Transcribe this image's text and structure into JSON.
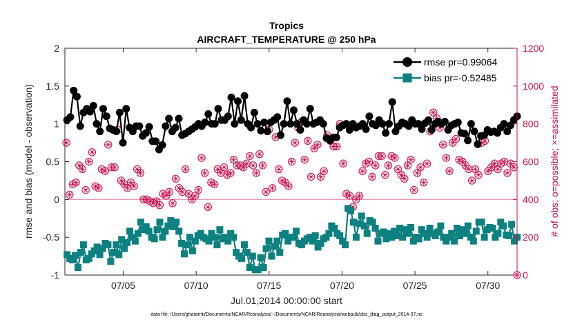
{
  "chart_data": {
    "type": "line",
    "title": "Tropics",
    "subtitle": "AIRCRAFT_TEMPERATURE @ 250 hPa",
    "xlabel": "Jul.01,2014 00:00:00 start",
    "ylabel": "rmse and bias (model - observation)",
    "y2label": "# of obs: o=possible; ×=assimilated",
    "footnote": "data file: /Users/gharamti/Documents/NCAR/Reanalysis/~/Documents/NCAR/Reanalysis/webpub/obs_diag_output_2014-07.nc",
    "xlim": [
      1,
      32
    ],
    "ylim": [
      -1,
      2
    ],
    "y2lim": [
      0,
      1200
    ],
    "xticks": [
      5,
      10,
      15,
      20,
      25,
      30
    ],
    "xtick_labels": [
      "07/05",
      "07/10",
      "07/15",
      "07/20",
      "07/25",
      "07/30"
    ],
    "yticks": [
      -1,
      -0.5,
      0,
      0.5,
      1,
      1.5,
      2
    ],
    "ytick_labels": [
      "-1",
      "-0.5",
      "0",
      "0.5",
      "1",
      "1.5",
      "2"
    ],
    "y2ticks": [
      0,
      200,
      400,
      600,
      800,
      1000,
      1200
    ],
    "y2tick_labels": [
      "0",
      "200",
      "400",
      "600",
      "800",
      "1000",
      "1200"
    ],
    "legend_position": "top-right",
    "series": [
      {
        "name": "rmse pr=0.99064",
        "color": "#000000",
        "marker": "circle",
        "axis": "left",
        "values": [
          1.05,
          1.09,
          1.44,
          1.36,
          0.97,
          1.15,
          1.2,
          1.16,
          1.24,
          1.0,
          0.9,
          1.2,
          1.1,
          0.94,
          0.92,
          0.9,
          1.15,
          0.75,
          1.2,
          0.95,
          0.9,
          0.97,
          0.97,
          0.84,
          0.88,
          0.96,
          0.77,
          0.77,
          0.66,
          0.72,
          0.97,
          1.07,
          0.9,
          0.95,
          1.07,
          0.85,
          0.87,
          0.9,
          0.93,
          0.96,
          1.0,
          0.97,
          1.02,
          1.13,
          1.0,
          1.0,
          1.2,
          1.05,
          1.05,
          1.1,
          1.35,
          1.0,
          1.3,
          1.05,
          1.37,
          1.0,
          0.95,
          1.15,
          1.0,
          0.91,
          1.02,
          0.9,
          1.02,
          1.05,
          1.09,
          0.85,
          1.0,
          1.3,
          1.0,
          1.18,
          1.0,
          0.92,
          1.05,
          1.0,
          1.2,
          1.0,
          1.02,
          1.05,
          1.0,
          0.81,
          0.78,
          0.82,
          0.82,
          0.95,
          0.98,
          1.0,
          0.92,
          1.0,
          0.95,
          0.97,
          1.0,
          0.93,
          1.1,
          1.0,
          0.98,
          1.05,
          1.0,
          0.88,
          1.0,
          1.29,
          0.9,
          0.97,
          1.02,
          1.0,
          0.97,
          1.05,
          1.0,
          1.0,
          0.93,
          1.01,
          1.05,
          0.92,
          1.0,
          1.03,
          1.0,
          1.03,
          0.92,
          0.98,
          1.0,
          1.02,
          0.88,
          0.87,
          0.78,
          1.0,
          0.9,
          0.73,
          0.84,
          0.85,
          0.92,
          0.89,
          0.9,
          0.88,
          0.95,
          1.0,
          0.9,
          0.98,
          1.05,
          1.1
        ],
        "x_start": 1.15,
        "x_end": 32.0
      },
      {
        "name": "bias pr=-0.52485",
        "color": "#0d8080",
        "marker": "square",
        "axis": "left",
        "values": [
          -0.73,
          -0.78,
          -0.8,
          -0.74,
          -0.9,
          -0.7,
          -0.6,
          -0.8,
          -0.78,
          -0.72,
          -0.68,
          -0.63,
          -0.73,
          -0.65,
          -0.58,
          -0.6,
          -0.82,
          -0.7,
          -0.6,
          -0.73,
          -0.53,
          -0.65,
          -0.57,
          -0.42,
          -0.5,
          -0.55,
          -0.45,
          -0.3,
          -0.4,
          -0.36,
          -0.42,
          -0.5,
          -0.52,
          -0.4,
          -0.3,
          -0.5,
          -0.42,
          -0.35,
          -0.28,
          -0.36,
          -0.3,
          -0.42,
          -0.58,
          -0.72,
          -0.6,
          -0.5,
          -0.68,
          -0.55,
          -0.48,
          -0.45,
          -0.5,
          -0.52,
          -0.55,
          -0.45,
          -0.5,
          -0.6,
          -0.4,
          -0.52,
          -0.5,
          -0.55,
          -0.45,
          -0.5,
          -0.7,
          -0.75,
          -0.78,
          -0.6,
          -0.7,
          -0.9,
          -0.75,
          -0.93,
          -0.93,
          -0.77,
          -0.9,
          -0.65,
          -0.55,
          -0.75,
          -0.62,
          -0.55,
          -0.7,
          -0.47,
          -0.45,
          -0.55,
          -0.5,
          -0.5,
          -0.42,
          -0.58,
          -0.6,
          -0.55,
          -0.52,
          -0.5,
          -0.55,
          -0.48,
          -0.63,
          -0.58,
          -0.52,
          -0.5,
          -0.45,
          -0.35,
          -0.38,
          -0.45,
          -0.48,
          -0.55,
          -0.6,
          -0.12,
          -0.15,
          -0.3,
          -0.5,
          -0.32,
          -0.22,
          -0.35,
          -0.45,
          -0.28,
          -0.3,
          -0.38,
          -0.55,
          -0.45,
          -0.43,
          -0.52,
          -0.45,
          -0.5,
          -0.42,
          -0.48,
          -0.38,
          -0.5,
          -0.4,
          -0.45,
          -0.37,
          -0.55,
          -0.5,
          -0.52,
          -0.4,
          -0.45,
          -0.5,
          -0.38,
          -0.45,
          -0.48,
          -0.43,
          -0.35,
          -0.5,
          -0.55,
          -0.5,
          -0.45,
          -0.55,
          -0.38,
          -0.48,
          -0.4,
          -0.45,
          -0.35,
          -0.5,
          -0.55,
          -0.42,
          -0.3,
          -0.3,
          -0.5,
          -0.4,
          -0.37,
          -0.38,
          -0.5,
          -0.45,
          -0.3,
          -0.35,
          -0.47,
          -0.48,
          -0.33,
          -0.55,
          -0.5
        ],
        "x_start": 1.15,
        "x_end": 32.0
      },
      {
        "name": "# of obs possible/assimilated",
        "color": "#c8104e",
        "marker": "circle-times",
        "axis": "right",
        "values": [
          700,
          425,
          480,
          490,
          580,
          560,
          450,
          600,
          650,
          470,
          460,
          560,
          550,
          690,
          570,
          570,
          770,
          500,
          480,
          460,
          490,
          470,
          560,
          540,
          400,
          400,
          390,
          380,
          390,
          370,
          430,
          420,
          440,
          380,
          510,
          460,
          440,
          560,
          430,
          400,
          420,
          450,
          620,
          540,
          360,
          490,
          480,
          560,
          540,
          570,
          530,
          540,
          610,
          580,
          580,
          570,
          590,
          630,
          580,
          540,
          640,
          580,
          440,
          770,
          460,
          730,
          560,
          500,
          490,
          470,
          600,
          700,
          780,
          810,
          610,
          710,
          520,
          670,
          690,
          520,
          550,
          740,
          710,
          680,
          680,
          800,
          590,
          430,
          420,
          360,
          400,
          420,
          550,
          590,
          600,
          520,
          580,
          630,
          630,
          530,
          580,
          630,
          620,
          560,
          530,
          510,
          580,
          610,
          450,
          540,
          570,
          490,
          590,
          760,
          860,
          830,
          780,
          690,
          620,
          550,
          700,
          720,
          610,
          600,
          580,
          560,
          500,
          560,
          530,
          700,
          710,
          550,
          570,
          590,
          560,
          590,
          600,
          540,
          590,
          570,
          0
        ]
      }
    ]
  }
}
